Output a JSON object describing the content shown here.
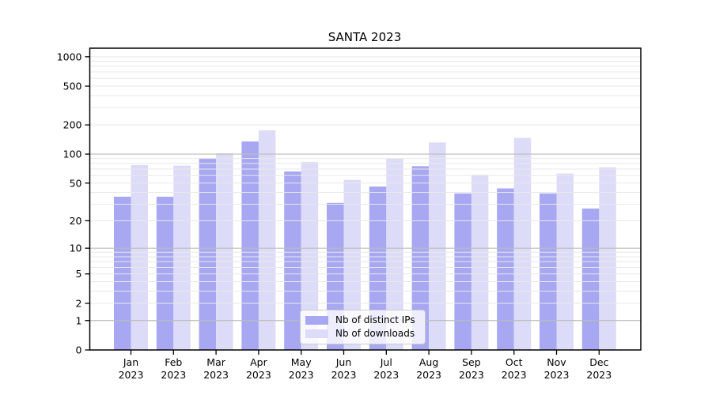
{
  "title": "SANTA 2023",
  "colors": {
    "distinct_ips_bar": "#a7a7f2",
    "downloads_bar": "#dcdcf8",
    "major_gridline": "#bbbbbb",
    "minor_gridline": "#e8e8e8",
    "axis": "#000000",
    "legend_border": "#cccccc"
  },
  "legend": {
    "items": [
      {
        "label": "Nb of distinct IPs",
        "color": "#a7a7f2"
      },
      {
        "label": "Nb of downloads",
        "color": "#dcdcf8"
      }
    ]
  },
  "chart_data": {
    "type": "bar",
    "title": "SANTA 2023",
    "categories": [
      "Jan 2023",
      "Feb 2023",
      "Mar 2023",
      "Apr 2023",
      "May 2023",
      "Jun 2023",
      "Jul 2023",
      "Aug 2023",
      "Sep 2023",
      "Oct 2023",
      "Nov 2023",
      "Dec 2023"
    ],
    "series": [
      {
        "name": "Nb of distinct IPs",
        "color": "#a7a7f2",
        "values": [
          36,
          36,
          91,
          135,
          66,
          31,
          46,
          75,
          39,
          44,
          39,
          27
        ]
      },
      {
        "name": "Nb of downloads",
        "color": "#dcdcf8",
        "values": [
          77,
          76,
          102,
          176,
          83,
          54,
          91,
          132,
          61,
          147,
          63,
          73
        ]
      }
    ],
    "xlabel": "",
    "ylabel": "",
    "yscale": "log1p",
    "yticks": [
      0,
      1,
      2,
      5,
      10,
      20,
      50,
      100,
      200,
      500,
      1000
    ],
    "major_grid_values": [
      1,
      10,
      100
    ],
    "minor_grid_decades": [
      1,
      10,
      100
    ],
    "minor_grid_subs": [
      2,
      3,
      4,
      5,
      6,
      7,
      8,
      9
    ],
    "extra_minor_grid_values": [
      1000
    ],
    "ylim": [
      0,
      1224
    ],
    "grid": true,
    "legend_position": "lower center"
  }
}
